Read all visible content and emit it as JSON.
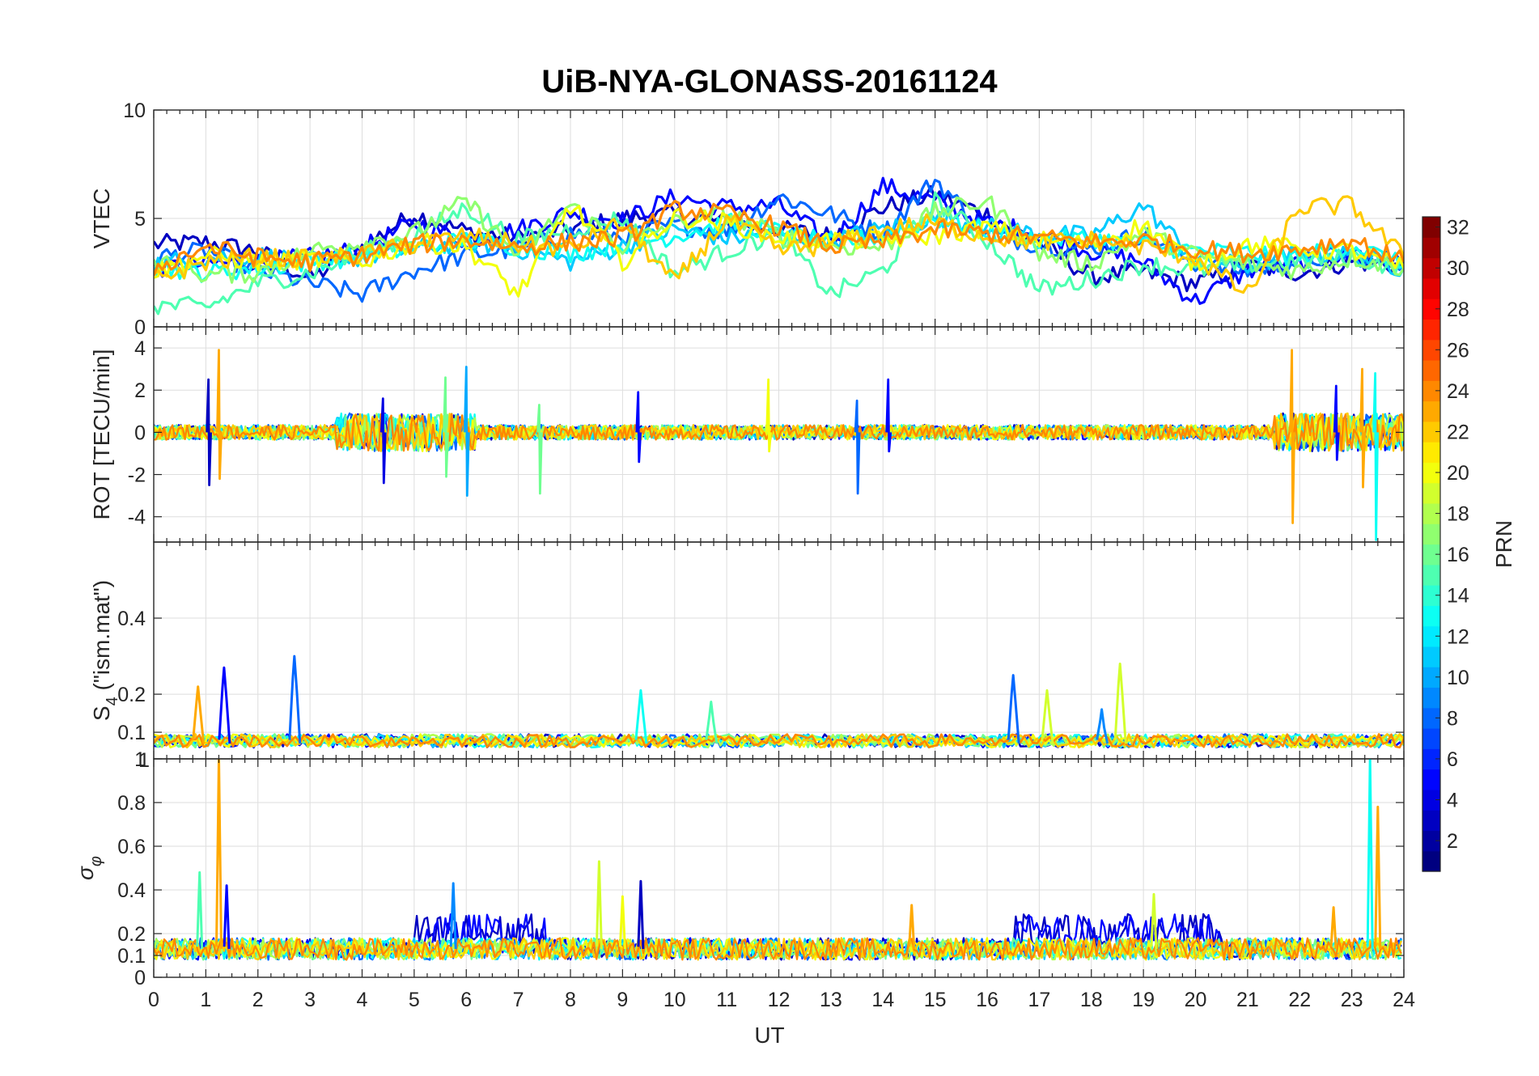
{
  "chart_data": {
    "type": "line",
    "title": "UiB-NYA-GLONASS-20161124",
    "xlabel": "UT",
    "x_ticks": [
      "0",
      "1",
      "2",
      "3",
      "4",
      "5",
      "6",
      "7",
      "8",
      "9",
      "10",
      "11",
      "12",
      "13",
      "14",
      "15",
      "16",
      "17",
      "18",
      "19",
      "20",
      "21",
      "22",
      "23",
      "24"
    ],
    "xlim": [
      0,
      24
    ],
    "grid": true,
    "colorbar": {
      "label": "PRN",
      "range": [
        1,
        32
      ],
      "ticks": [
        "2",
        "4",
        "6",
        "8",
        "10",
        "12",
        "14",
        "16",
        "18",
        "20",
        "22",
        "24",
        "26",
        "28",
        "30",
        "32"
      ],
      "colormap": "jet"
    },
    "panels": [
      {
        "ylabel": "VTEC",
        "ylim": [
          0,
          10
        ],
        "y_ticks": [
          "0",
          "5",
          "10"
        ],
        "series": [
          {
            "prn": 3,
            "x": [
              0,
              1,
              2,
              3,
              4,
              5,
              6,
              7,
              8,
              9,
              10,
              11,
              12,
              13,
              14,
              15,
              16,
              17,
              18,
              19,
              20,
              21,
              22,
              23,
              24
            ],
            "y": [
              3.8,
              3.9,
              3.5,
              2.2,
              3.7,
              5.2,
              4.4,
              4.1,
              4.5,
              5.0,
              5.2,
              4.8,
              4.5,
              4.2,
              5.5,
              6.1,
              5.2,
              3.9,
              2.3,
              2.5,
              2.0,
              2.8,
              2.5,
              3.0,
              2.8
            ]
          },
          {
            "prn": 5,
            "x": [
              0,
              1,
              2,
              3,
              4,
              5,
              6,
              7,
              8,
              9,
              10,
              11,
              12,
              13,
              14,
              15,
              16,
              17,
              18,
              19,
              20,
              21,
              22,
              23,
              24
            ],
            "y": [
              2.7,
              2.9,
              3.0,
              3.2,
              3.6,
              4.8,
              4.0,
              4.5,
              5.3,
              4.9,
              6.0,
              5.5,
              5.6,
              3.9,
              6.5,
              5.8,
              4.8,
              4.3,
              3.5,
              3.0,
              1.2,
              2.6,
              2.9,
              3.3,
              2.9
            ]
          },
          {
            "prn": 8,
            "x": [
              0,
              1,
              2,
              3,
              4,
              5,
              6,
              7,
              8,
              9,
              10,
              11,
              12,
              13,
              14,
              15,
              16,
              17,
              18,
              19,
              20,
              21,
              22,
              23,
              24
            ],
            "y": [
              3.2,
              3.5,
              2.6,
              2.0,
              1.5,
              2.6,
              3.3,
              3.6,
              4.3,
              4.2,
              4.7,
              4.4,
              6.0,
              5.2,
              4.3,
              6.8,
              4.3,
              3.8,
              3.6,
              4.3,
              2.9,
              2.6,
              3.0,
              3.4,
              2.9
            ]
          },
          {
            "prn": 11,
            "x": [
              0,
              1,
              2,
              3,
              4,
              5,
              6,
              7,
              8,
              9,
              10,
              11,
              12,
              13,
              14,
              15,
              16,
              17,
              18,
              19,
              20,
              21,
              22,
              23,
              24
            ],
            "y": [
              2.9,
              3.2,
              3.3,
              3.0,
              3.2,
              3.6,
              3.9,
              3.6,
              3.0,
              3.7,
              4.5,
              4.1,
              4.3,
              4.0,
              4.5,
              5.0,
              4.6,
              4.3,
              4.2,
              5.6,
              3.1,
              2.8,
              3.4,
              3.3,
              2.7
            ]
          },
          {
            "prn": 13,
            "x": [
              0,
              1,
              2,
              3,
              4,
              5,
              6,
              7,
              8,
              9,
              10,
              11,
              12,
              13,
              14,
              15,
              16,
              17,
              18,
              19,
              20,
              21,
              22,
              23,
              24
            ],
            "y": [
              2.8,
              2.5,
              2.7,
              3.0,
              3.3,
              3.6,
              4.0,
              3.7,
              3.4,
              3.8,
              4.2,
              4.8,
              4.4,
              3.8,
              4.2,
              5.0,
              4.4,
              4.0,
              4.1,
              3.8,
              3.5,
              3.4,
              3.2,
              3.8,
              2.8
            ]
          },
          {
            "prn": 15,
            "x": [
              0,
              1,
              2,
              3,
              4,
              5,
              6,
              7,
              8,
              9,
              10,
              11,
              12,
              13,
              14,
              15,
              16,
              17,
              18,
              19,
              20,
              21,
              22,
              23,
              24
            ],
            "y": [
              1.0,
              0.9,
              2.0,
              2.5,
              3.4,
              4.2,
              5.5,
              4.0,
              4.5,
              5.0,
              2.5,
              3.5,
              4.3,
              1.5,
              2.6,
              5.8,
              4.0,
              1.7,
              2.2,
              2.9,
              2.6,
              2.9,
              3.0,
              3.2,
              2.7
            ]
          },
          {
            "prn": 17,
            "x": [
              0,
              1,
              2,
              3,
              4,
              5,
              6,
              7,
              8,
              9,
              10,
              11,
              12,
              13,
              14,
              15,
              16,
              17,
              18,
              19,
              20,
              21,
              22,
              23,
              24
            ],
            "y": [
              3.0,
              2.4,
              2.5,
              3.5,
              3.9,
              4.3,
              5.8,
              3.3,
              5.6,
              3.7,
              4.8,
              5.2,
              4.2,
              3.7,
              3.7,
              5.3,
              5.8,
              3.4,
              2.9,
              4.3,
              3.3,
              2.9,
              2.6,
              3.2,
              2.7
            ]
          },
          {
            "prn": 20,
            "x": [
              0,
              1,
              2,
              3,
              4,
              5,
              6,
              7,
              8,
              9,
              10,
              11,
              12,
              13,
              14,
              15,
              16,
              17,
              18,
              19,
              20,
              21,
              22,
              23,
              24
            ],
            "y": [
              2.5,
              3.3,
              3.0,
              3.1,
              3.0,
              3.9,
              3.7,
              1.5,
              5.6,
              3.0,
              5.1,
              4.8,
              4.1,
              4.0,
              4.0,
              4.2,
              4.6,
              4.0,
              3.8,
              4.7,
              2.9,
              3.8,
              3.6,
              3.5,
              2.7
            ]
          },
          {
            "prn": 22,
            "x": [
              0,
              1,
              2,
              3,
              4,
              5,
              6,
              7,
              8,
              9,
              10,
              11,
              12,
              13,
              14,
              15,
              16,
              17,
              18,
              19,
              20,
              21,
              22,
              23,
              24
            ],
            "y": [
              2.2,
              3.0,
              3.2,
              3.1,
              3.3,
              3.8,
              4.2,
              3.8,
              3.6,
              4.8,
              2.0,
              5.0,
              3.5,
              3.8,
              4.5,
              4.8,
              4.2,
              3.9,
              4.0,
              3.7,
              3.2,
              1.5,
              5.5,
              5.6,
              3.2
            ]
          },
          {
            "prn": 24,
            "x": [
              0,
              1,
              2,
              3,
              4,
              5,
              6,
              7,
              8,
              9,
              10,
              11,
              12,
              13,
              14,
              15,
              16,
              17,
              18,
              19,
              20,
              21,
              22,
              23,
              24
            ],
            "y": [
              2.7,
              3.7,
              3.2,
              3.0,
              3.3,
              3.8,
              4.0,
              3.7,
              3.9,
              4.1,
              5.4,
              5.2,
              4.6,
              3.7,
              3.9,
              4.5,
              4.3,
              4.1,
              3.9,
              4.0,
              3.6,
              3.4,
              3.6,
              4.0,
              3.0
            ]
          }
        ]
      },
      {
        "ylabel": "ROT [TECU/min]",
        "ylim": [
          -5.2,
          5.0
        ],
        "y_ticks": [
          "-4",
          "-2",
          "0",
          "2",
          "4"
        ],
        "spikes": [
          {
            "prn": 3,
            "x": 1.05,
            "lo": -2.5,
            "hi": 2.5
          },
          {
            "prn": 23,
            "x": 1.25,
            "lo": -2.2,
            "hi": 3.9
          },
          {
            "prn": 4,
            "x": 4.4,
            "lo": -2.4,
            "hi": 1.6
          },
          {
            "prn": 16,
            "x": 5.6,
            "lo": -2.1,
            "hi": 2.6
          },
          {
            "prn": 10,
            "x": 6.0,
            "lo": -3.0,
            "hi": 3.1
          },
          {
            "prn": 16,
            "x": 7.4,
            "lo": -2.9,
            "hi": 1.3
          },
          {
            "prn": 5,
            "x": 9.3,
            "lo": -1.4,
            "hi": 1.9
          },
          {
            "prn": 20,
            "x": 11.8,
            "lo": -0.9,
            "hi": 2.5
          },
          {
            "prn": 8,
            "x": 13.5,
            "lo": -2.9,
            "hi": 1.5
          },
          {
            "prn": 5,
            "x": 14.1,
            "lo": -0.9,
            "hi": 2.5
          },
          {
            "prn": 23,
            "x": 21.85,
            "lo": -4.3,
            "hi": 3.9
          },
          {
            "prn": 5,
            "x": 22.7,
            "lo": -1.3,
            "hi": 2.2
          },
          {
            "prn": 23,
            "x": 23.2,
            "lo": -2.6,
            "hi": 3.0
          },
          {
            "prn": 13,
            "x": 23.45,
            "lo": -5.1,
            "hi": 2.8
          }
        ]
      },
      {
        "ylabel": "S4 (\"ism.mat\")",
        "ylabel_main": "S",
        "ylabel_sub": "4",
        "ylabel_rest": " (\"ism.mat\")",
        "ylim": [
          0.03,
          0.6
        ],
        "y_ticks": [
          "0.1",
          "0.2",
          "0.4"
        ],
        "peaks": [
          {
            "prn": 23,
            "x": 0.85,
            "y": 0.22
          },
          {
            "prn": 5,
            "x": 1.35,
            "y": 0.27
          },
          {
            "prn": 8,
            "x": 2.7,
            "y": 0.3
          },
          {
            "prn": 13,
            "x": 9.35,
            "y": 0.21
          },
          {
            "prn": 15,
            "x": 10.7,
            "y": 0.18
          },
          {
            "prn": 8,
            "x": 16.5,
            "y": 0.25
          },
          {
            "prn": 19,
            "x": 17.15,
            "y": 0.21
          },
          {
            "prn": 9,
            "x": 18.2,
            "y": 0.16
          },
          {
            "prn": 19,
            "x": 18.55,
            "y": 0.28
          }
        ]
      },
      {
        "ylabel": "σ φ",
        "ylabel_main": "σ",
        "ylabel_sub": "φ",
        "ylim": [
          0,
          1
        ],
        "y_ticks": [
          "0",
          "0.1",
          "0.2",
          "0.4",
          "0.6",
          "0.8",
          "1"
        ],
        "top_tick_overlap": "1",
        "peaks": [
          {
            "prn": 15,
            "x": 0.88,
            "y": 0.48
          },
          {
            "prn": 23,
            "x": 1.25,
            "y": 1.0
          },
          {
            "prn": 5,
            "x": 1.4,
            "y": 0.42
          },
          {
            "prn": 9,
            "x": 5.75,
            "y": 0.43
          },
          {
            "prn": 19,
            "x": 8.55,
            "y": 0.53
          },
          {
            "prn": 3,
            "x": 9.35,
            "y": 0.44
          },
          {
            "prn": 20,
            "x": 9.0,
            "y": 0.37
          },
          {
            "prn": 23,
            "x": 14.55,
            "y": 0.33
          },
          {
            "prn": 19,
            "x": 19.2,
            "y": 0.38
          },
          {
            "prn": 23,
            "x": 22.65,
            "y": 0.32
          },
          {
            "prn": 13,
            "x": 23.35,
            "y": 1.0
          },
          {
            "prn": 23,
            "x": 23.5,
            "y": 0.78
          }
        ]
      }
    ]
  }
}
